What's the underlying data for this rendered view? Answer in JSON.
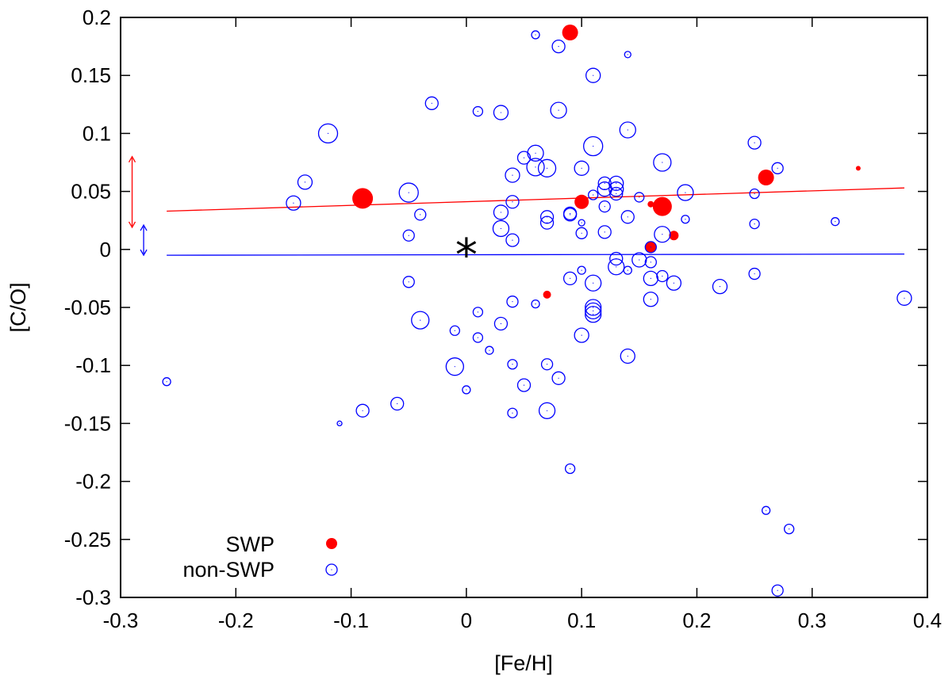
{
  "chart_data": {
    "type": "scatter",
    "xlabel": "[Fe/H]",
    "ylabel": "[C/O]",
    "xlim": [
      -0.3,
      0.4
    ],
    "ylim": [
      -0.3,
      0.2
    ],
    "xticks": [
      "-0.3",
      "-0.2",
      "-0.1",
      "0",
      "0.1",
      "0.2",
      "0.3",
      "0.4"
    ],
    "yticks": [
      "0.2",
      "0.15",
      "0.1",
      "0.05",
      "0",
      "-0.05",
      "-0.1",
      "-0.15",
      "-0.2",
      "-0.25",
      "-0.3"
    ],
    "grid": false,
    "legend_position": "bottom-left",
    "legend": [
      {
        "label": "SWP",
        "style": "filled",
        "color": "#ff0000"
      },
      {
        "label": "non-SWP",
        "style": "open",
        "color": "#0000ff"
      }
    ],
    "sun_marker": {
      "x": 0,
      "y": 0,
      "symbol": "*"
    },
    "series": [
      {
        "name": "SWP",
        "color": "#ff0000",
        "style": "filled",
        "points": [
          {
            "x": 0.09,
            "y": 0.187,
            "size": 10
          },
          {
            "x": -0.09,
            "y": 0.044,
            "size": 13
          },
          {
            "x": 0.1,
            "y": 0.041,
            "size": 9
          },
          {
            "x": 0.17,
            "y": 0.037,
            "size": 12
          },
          {
            "x": 0.26,
            "y": 0.062,
            "size": 10
          },
          {
            "x": 0.34,
            "y": 0.07,
            "size": 3
          },
          {
            "x": 0.16,
            "y": 0.039,
            "size": 4
          },
          {
            "x": 0.16,
            "y": 0.002,
            "size": 7
          },
          {
            "x": 0.18,
            "y": 0.012,
            "size": 6
          },
          {
            "x": 0.07,
            "y": -0.039,
            "size": 5
          }
        ]
      },
      {
        "name": "non-SWP",
        "color": "#0000ff",
        "style": "open",
        "points": [
          {
            "x": 0.06,
            "y": 0.185,
            "size": 5
          },
          {
            "x": 0.08,
            "y": 0.175,
            "size": 8
          },
          {
            "x": 0.14,
            "y": 0.168,
            "size": 4
          },
          {
            "x": 0.11,
            "y": 0.15,
            "size": 9
          },
          {
            "x": -0.03,
            "y": 0.126,
            "size": 8
          },
          {
            "x": 0.01,
            "y": 0.119,
            "size": 6
          },
          {
            "x": 0.03,
            "y": 0.118,
            "size": 9
          },
          {
            "x": 0.08,
            "y": 0.12,
            "size": 10
          },
          {
            "x": -0.12,
            "y": 0.1,
            "size": 12
          },
          {
            "x": 0.14,
            "y": 0.103,
            "size": 10
          },
          {
            "x": 0.25,
            "y": 0.092,
            "size": 8
          },
          {
            "x": 0.11,
            "y": 0.089,
            "size": 12
          },
          {
            "x": 0.06,
            "y": 0.083,
            "size": 10
          },
          {
            "x": 0.05,
            "y": 0.079,
            "size": 8
          },
          {
            "x": 0.17,
            "y": 0.075,
            "size": 11
          },
          {
            "x": 0.06,
            "y": 0.071,
            "size": 11
          },
          {
            "x": 0.07,
            "y": 0.07,
            "size": 11
          },
          {
            "x": 0.1,
            "y": 0.07,
            "size": 9
          },
          {
            "x": 0.27,
            "y": 0.07,
            "size": 7
          },
          {
            "x": 0.04,
            "y": 0.064,
            "size": 9
          },
          {
            "x": -0.14,
            "y": 0.058,
            "size": 9
          },
          {
            "x": 0.12,
            "y": 0.057,
            "size": 8
          },
          {
            "x": 0.13,
            "y": 0.057,
            "size": 9
          },
          {
            "x": 0.12,
            "y": 0.052,
            "size": 9
          },
          {
            "x": 0.13,
            "y": 0.052,
            "size": 9
          },
          {
            "x": -0.05,
            "y": 0.049,
            "size": 12
          },
          {
            "x": 0.19,
            "y": 0.049,
            "size": 10
          },
          {
            "x": 0.13,
            "y": 0.048,
            "size": 8
          },
          {
            "x": 0.11,
            "y": 0.047,
            "size": 6
          },
          {
            "x": 0.25,
            "y": 0.048,
            "size": 6
          },
          {
            "x": 0.15,
            "y": 0.045,
            "size": 6
          },
          {
            "x": 0.04,
            "y": 0.041,
            "size": 8
          },
          {
            "x": -0.15,
            "y": 0.04,
            "size": 9
          },
          {
            "x": 0.12,
            "y": 0.037,
            "size": 7
          },
          {
            "x": 0.03,
            "y": 0.032,
            "size": 9
          },
          {
            "x": -0.04,
            "y": 0.03,
            "size": 7
          },
          {
            "x": 0.09,
            "y": 0.031,
            "size": 8
          },
          {
            "x": 0.09,
            "y": 0.03,
            "size": 8
          },
          {
            "x": 0.07,
            "y": 0.028,
            "size": 8
          },
          {
            "x": 0.14,
            "y": 0.028,
            "size": 8
          },
          {
            "x": 0.19,
            "y": 0.026,
            "size": 5
          },
          {
            "x": 0.32,
            "y": 0.024,
            "size": 5
          },
          {
            "x": 0.07,
            "y": 0.023,
            "size": 8
          },
          {
            "x": 0.1,
            "y": 0.023,
            "size": 4
          },
          {
            "x": 0.25,
            "y": 0.022,
            "size": 6
          },
          {
            "x": 0.03,
            "y": 0.018,
            "size": 10
          },
          {
            "x": 0.1,
            "y": 0.014,
            "size": 7
          },
          {
            "x": 0.12,
            "y": 0.015,
            "size": 8
          },
          {
            "x": 0.17,
            "y": 0.013,
            "size": 10
          },
          {
            "x": -0.05,
            "y": 0.012,
            "size": 7
          },
          {
            "x": 0.04,
            "y": 0.008,
            "size": 8
          },
          {
            "x": 0.16,
            "y": 0.002,
            "size": 7
          },
          {
            "x": 0.13,
            "y": -0.008,
            "size": 8
          },
          {
            "x": 0.15,
            "y": -0.009,
            "size": 9
          },
          {
            "x": 0.16,
            "y": -0.011,
            "size": 7
          },
          {
            "x": 0.13,
            "y": -0.015,
            "size": 10
          },
          {
            "x": 0.14,
            "y": -0.018,
            "size": 5
          },
          {
            "x": 0.1,
            "y": -0.018,
            "size": 5
          },
          {
            "x": 0.25,
            "y": -0.021,
            "size": 7
          },
          {
            "x": 0.17,
            "y": -0.023,
            "size": 7
          },
          {
            "x": 0.09,
            "y": -0.025,
            "size": 8
          },
          {
            "x": 0.16,
            "y": -0.025,
            "size": 9
          },
          {
            "x": -0.05,
            "y": -0.028,
            "size": 7
          },
          {
            "x": 0.18,
            "y": -0.029,
            "size": 9
          },
          {
            "x": 0.11,
            "y": -0.029,
            "size": 10
          },
          {
            "x": 0.22,
            "y": -0.032,
            "size": 9
          },
          {
            "x": 0.38,
            "y": -0.042,
            "size": 9
          },
          {
            "x": 0.16,
            "y": -0.043,
            "size": 9
          },
          {
            "x": 0.04,
            "y": -0.045,
            "size": 7
          },
          {
            "x": 0.06,
            "y": -0.047,
            "size": 5
          },
          {
            "x": 0.11,
            "y": -0.05,
            "size": 10
          },
          {
            "x": 0.11,
            "y": -0.053,
            "size": 10
          },
          {
            "x": 0.11,
            "y": -0.056,
            "size": 10
          },
          {
            "x": 0.01,
            "y": -0.054,
            "size": 6
          },
          {
            "x": -0.04,
            "y": -0.061,
            "size": 11
          },
          {
            "x": 0.03,
            "y": -0.064,
            "size": 8
          },
          {
            "x": -0.01,
            "y": -0.07,
            "size": 6
          },
          {
            "x": 0.1,
            "y": -0.074,
            "size": 9
          },
          {
            "x": 0.01,
            "y": -0.076,
            "size": 6
          },
          {
            "x": 0.02,
            "y": -0.087,
            "size": 5
          },
          {
            "x": 0.14,
            "y": -0.092,
            "size": 9
          },
          {
            "x": 0.04,
            "y": -0.099,
            "size": 6
          },
          {
            "x": 0.07,
            "y": -0.099,
            "size": 7
          },
          {
            "x": -0.01,
            "y": -0.101,
            "size": 11
          },
          {
            "x": 0.08,
            "y": -0.111,
            "size": 8
          },
          {
            "x": -0.26,
            "y": -0.114,
            "size": 5
          },
          {
            "x": 0.05,
            "y": -0.117,
            "size": 8
          },
          {
            "x": 0.0,
            "y": -0.121,
            "size": 5
          },
          {
            "x": -0.06,
            "y": -0.133,
            "size": 8
          },
          {
            "x": -0.09,
            "y": -0.139,
            "size": 8
          },
          {
            "x": 0.07,
            "y": -0.139,
            "size": 10
          },
          {
            "x": 0.04,
            "y": -0.141,
            "size": 6
          },
          {
            "x": -0.11,
            "y": -0.15,
            "size": 3
          },
          {
            "x": 0.09,
            "y": -0.189,
            "size": 6
          },
          {
            "x": 0.26,
            "y": -0.225,
            "size": 5
          },
          {
            "x": 0.28,
            "y": -0.241,
            "size": 6
          },
          {
            "x": 0.27,
            "y": -0.294,
            "size": 7
          }
        ]
      }
    ],
    "fit_lines": [
      {
        "name": "SWP fit",
        "color": "#ff0000",
        "x": [
          -0.26,
          0.38
        ],
        "y": [
          0.033,
          0.053
        ]
      },
      {
        "name": "non-SWP fit",
        "color": "#0000ff",
        "x": [
          -0.26,
          0.38
        ],
        "y": [
          -0.005,
          -0.004
        ]
      }
    ],
    "error_bars": [
      {
        "name": "SWP scatter",
        "color": "#ff0000",
        "x": -0.29,
        "y": [
          0.019,
          0.08
        ]
      },
      {
        "name": "non-SWP scatter",
        "color": "#0000ff",
        "x": -0.28,
        "y": [
          -0.005,
          0.021
        ]
      }
    ]
  }
}
